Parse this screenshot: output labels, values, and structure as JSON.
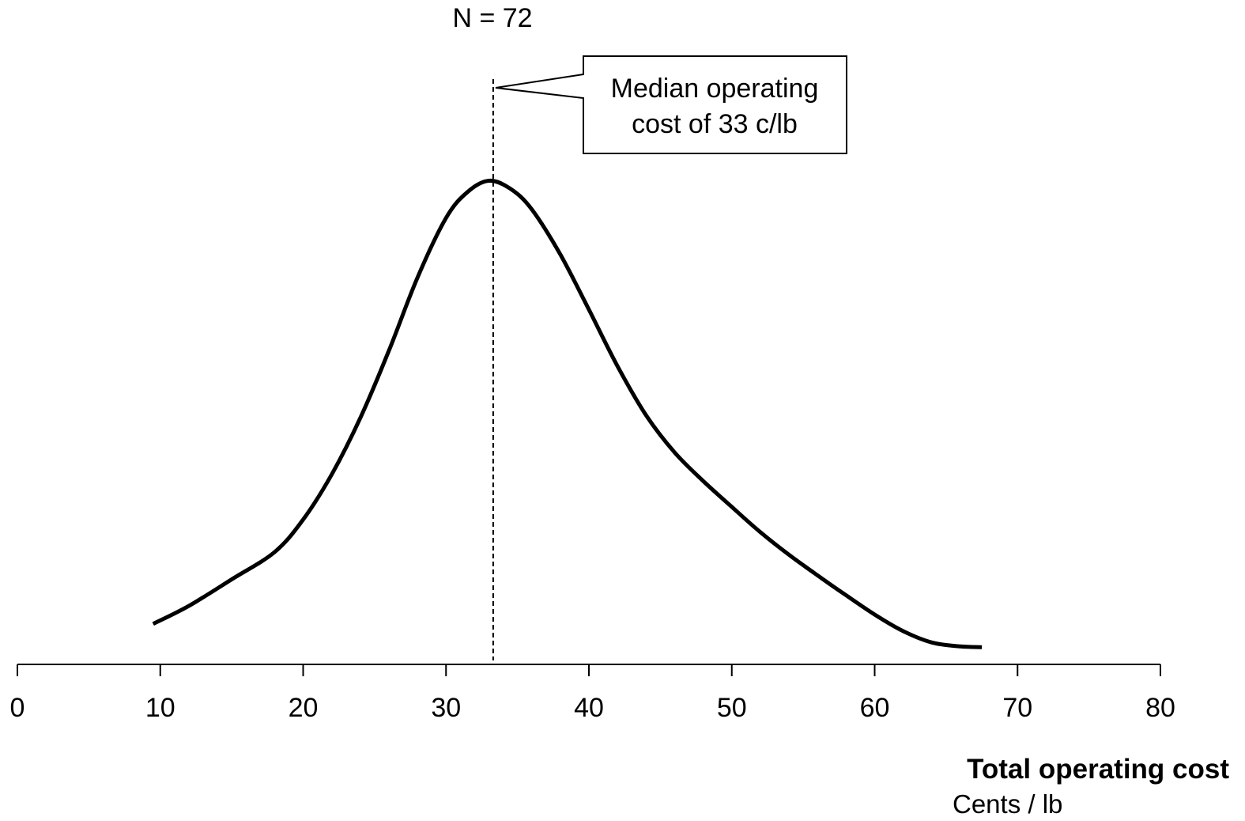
{
  "chart_data": {
    "type": "line",
    "title": "N = 72",
    "xlabel": "Total operating cost",
    "xlabel_unit": "Cents / lb",
    "ylabel": "",
    "xlim": [
      0,
      80
    ],
    "x_ticks": [
      0,
      10,
      20,
      30,
      40,
      50,
      60,
      70,
      80
    ],
    "y_axis_shown": false,
    "grid": false,
    "series": [
      {
        "x": [
          9.5,
          12,
          15,
          18,
          20,
          22,
          24,
          26,
          28,
          30,
          31.5,
          33,
          34.5,
          36,
          38,
          40,
          42,
          44,
          46,
          48,
          50,
          52,
          54,
          56,
          58,
          60,
          62,
          64,
          66,
          67.5
        ],
        "y": [
          0.061,
          0.088,
          0.128,
          0.169,
          0.218,
          0.286,
          0.371,
          0.472,
          0.582,
          0.672,
          0.711,
          0.728,
          0.716,
          0.685,
          0.617,
          0.534,
          0.449,
          0.375,
          0.319,
          0.276,
          0.237,
          0.199,
          0.165,
          0.134,
          0.104,
          0.075,
          0.05,
          0.033,
          0.027,
          0.026
        ]
      }
    ],
    "median_line": {
      "x": 33.3,
      "style": "dashed"
    },
    "annotation": {
      "lines": [
        "Median operating",
        "cost of 33 c/lb"
      ],
      "points_to_x": 33.3
    }
  }
}
